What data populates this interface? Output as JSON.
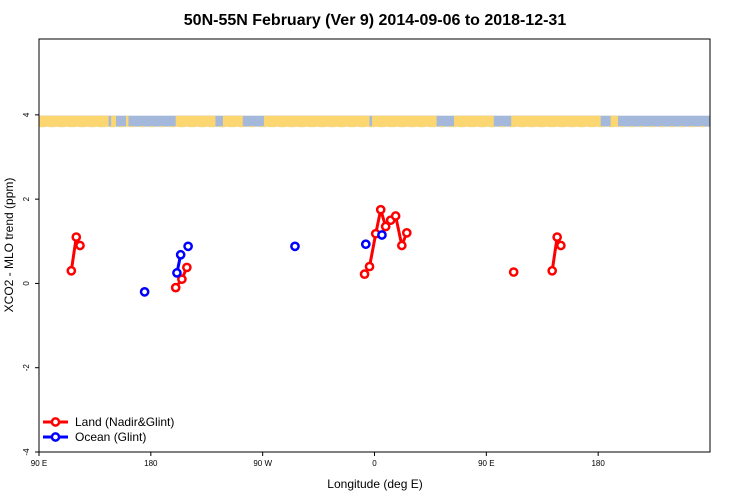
{
  "chart_data": {
    "type": "line",
    "title": "50N-55N February (Ver 9)   2014-09-06 to 2018-12-31",
    "xlabel": "Longitude (deg E)",
    "ylabel": "XCO2 - MLO trend (ppm)",
    "xlim": [
      -90,
      180
    ],
    "ylim": [
      -4,
      5.8
    ],
    "x_ticks": [
      {
        "value": -90,
        "label": "90 E"
      },
      {
        "value": -45,
        "label": "180"
      },
      {
        "value": 0,
        "label": "90 W"
      },
      {
        "value": 45,
        "label": "0"
      },
      {
        "value": 90,
        "label": "90 E"
      },
      {
        "value": 135,
        "label": "180"
      }
    ],
    "y_ticks": [
      {
        "value": -4,
        "label": "-4"
      },
      {
        "value": -2,
        "label": "-2"
      },
      {
        "value": 0,
        "label": "0"
      },
      {
        "value": 2,
        "label": "2"
      },
      {
        "value": 4,
        "label": "4"
      }
    ],
    "grid": false,
    "map_band": {
      "y_range": [
        3.72,
        3.98
      ],
      "ocean_color": "#a3b8da",
      "land_color": "#fbd671"
    },
    "legend_position": "bottom-left",
    "series": [
      {
        "name": "Land (Nadir&Glint)",
        "color": "#ff0000",
        "segments": [
          [
            [
              -77,
              0.3
            ],
            [
              -75,
              1.1
            ],
            [
              -73.5,
              0.9
            ]
          ],
          [
            [
              -35,
              -0.1
            ],
            [
              -32.5,
              0.1
            ],
            [
              -30.5,
              0.38
            ]
          ],
          [
            [
              41,
              0.22
            ],
            [
              43,
              0.4
            ],
            [
              45.5,
              1.18
            ],
            [
              47.5,
              1.75
            ],
            [
              49.5,
              1.35
            ],
            [
              51.5,
              1.5
            ],
            [
              53.5,
              1.6
            ],
            [
              56,
              0.9
            ],
            [
              58,
              1.2
            ]
          ],
          [
            [
              101,
              0.27
            ]
          ],
          [
            [
              116.5,
              0.3
            ],
            [
              118.5,
              1.1
            ],
            [
              120,
              0.9
            ]
          ]
        ]
      },
      {
        "name": "Ocean (Glint)",
        "color": "#0000ff",
        "segments": [
          [
            [
              -47.5,
              -0.2
            ]
          ],
          [
            [
              -34.5,
              0.25
            ],
            [
              -33,
              0.68
            ]
          ],
          [
            [
              -30,
              0.88
            ]
          ],
          [
            [
              13,
              0.88
            ]
          ],
          [
            [
              41.5,
              0.93
            ]
          ],
          [
            [
              48,
              1.15
            ]
          ]
        ]
      }
    ]
  }
}
